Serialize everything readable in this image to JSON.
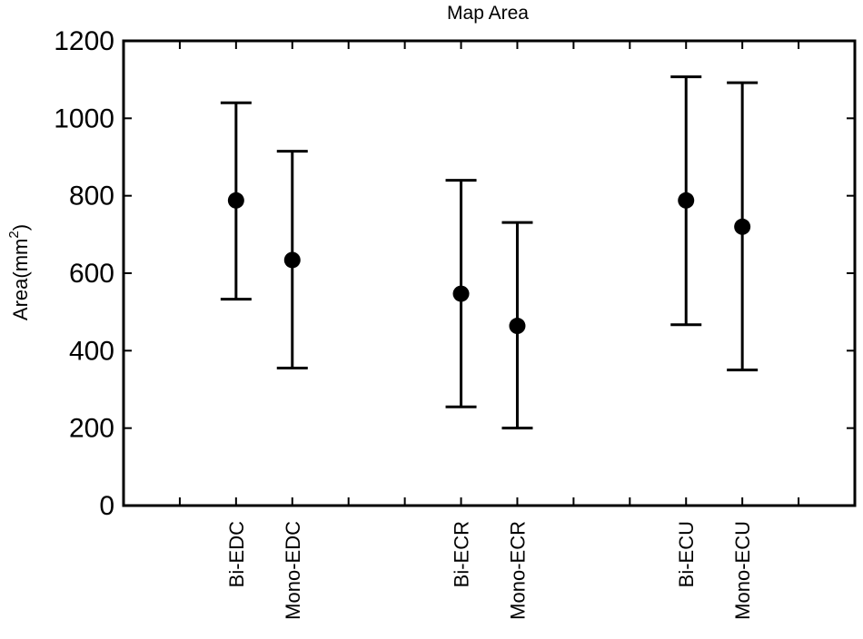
{
  "chart_data": {
    "type": "scatter",
    "title": "Map Area",
    "ylabel_main": "Area(mm",
    "ylabel_sup": "2",
    "ylabel_close": ")",
    "xlabel": "",
    "ylim": [
      0,
      1200
    ],
    "yticks": [
      "0",
      "200",
      "400",
      "600",
      "800",
      "1000",
      "1200"
    ],
    "categories": [
      "Bi-EDC",
      "Mono-EDC",
      "Bi-ECR",
      "Mono-ECR",
      "Bi-ECU",
      "Mono-ECU"
    ],
    "x": [
      2,
      3,
      6,
      7,
      10,
      11
    ],
    "xlim": [
      0,
      13
    ],
    "values": [
      788,
      634,
      547,
      464,
      788,
      720
    ],
    "upper": [
      1040,
      915,
      840,
      731,
      1107,
      1092
    ],
    "lower": [
      533,
      355,
      255,
      200,
      467,
      350
    ],
    "marker_color": "#000000",
    "grid": false,
    "legend": "none"
  }
}
